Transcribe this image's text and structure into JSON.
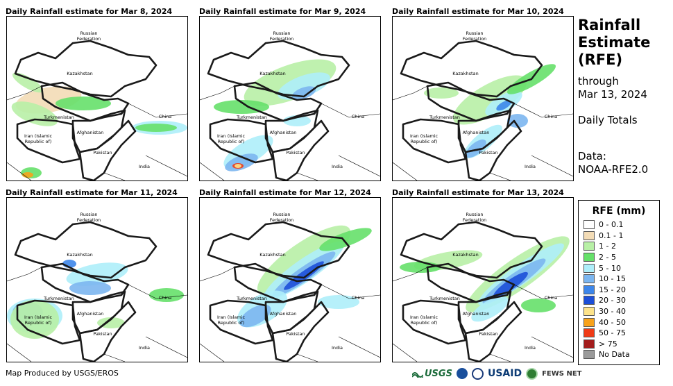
{
  "side_title": {
    "main": [
      "Rainfall",
      "Estimate",
      "(RFE)"
    ],
    "through_label": "through",
    "through_date": "Mar 13, 2024",
    "totals_label": "Daily Totals",
    "data_label": "Data:",
    "data_source": "NOAA-RFE2.0"
  },
  "panels": [
    {
      "title": "Daily Rainfall estimate for Mar 8, 2024"
    },
    {
      "title": "Daily Rainfall estimate for Mar 9, 2024"
    },
    {
      "title": "Daily Rainfall estimate for Mar 10, 2024"
    },
    {
      "title": "Daily Rainfall estimate for Mar 11, 2024"
    },
    {
      "title": "Daily Rainfall estimate for Mar 12, 2024"
    },
    {
      "title": "Daily Rainfall estimate for Mar 13, 2024"
    }
  ],
  "map_labels": {
    "russia_line1": "Russian",
    "russia_line2": "Federation",
    "kazakhstan": "Kazakhstan",
    "turkmenistan": "Turkmenistan",
    "china": "China",
    "iran_line1": "Iran  (Islamic",
    "iran_line2": "Republic of)",
    "afghanistan": "Afghanistan",
    "pakistan": "Pakistan",
    "india": "India"
  },
  "legend": {
    "title": "RFE (mm)",
    "items": [
      {
        "label": "0 - 0.1",
        "color": "#ffffff"
      },
      {
        "label": "0.1 - 1",
        "color": "#f3dcb6"
      },
      {
        "label": "1 - 2",
        "color": "#b8f0a6"
      },
      {
        "label": "2 - 5",
        "color": "#66e06a"
      },
      {
        "label": "5 - 10",
        "color": "#aeeefa"
      },
      {
        "label": "10 - 15",
        "color": "#7cb6f0"
      },
      {
        "label": "15 - 20",
        "color": "#3d86ea"
      },
      {
        "label": "20 - 30",
        "color": "#1d4fd8"
      },
      {
        "label": "30 - 40",
        "color": "#fde38a"
      },
      {
        "label": "40 - 50",
        "color": "#f7a21b"
      },
      {
        "label": "50 - 75",
        "color": "#ef3b17"
      },
      {
        "label": "> 75",
        "color": "#a31d1d"
      },
      {
        "label": "No Data",
        "color": "#9a9a9a"
      }
    ]
  },
  "footer": {
    "credit": "Map Produced by USGS/EROS"
  },
  "logos": {
    "usgs": "USGS",
    "usaid": "USAID",
    "fews": "FEWS NET"
  }
}
